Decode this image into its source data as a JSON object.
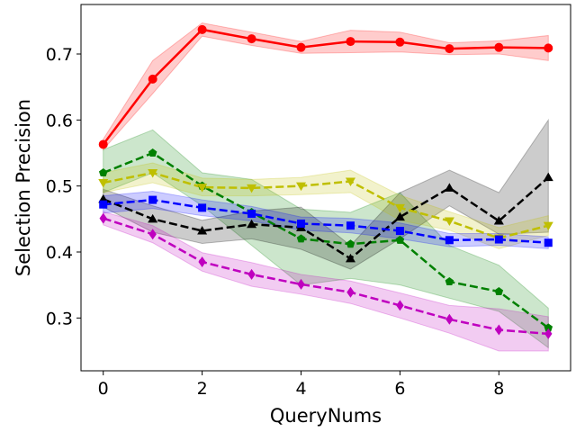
{
  "chart_data": {
    "type": "line",
    "title": "",
    "xlabel": "QueryNums",
    "ylabel": "Selection Precision",
    "xlim": [
      -0.45,
      9.45
    ],
    "ylim": [
      0.22,
      0.775
    ],
    "x": [
      0,
      1,
      2,
      3,
      4,
      5,
      6,
      7,
      8,
      9
    ],
    "xticks": [
      0,
      2,
      4,
      6,
      8
    ],
    "yticks": [
      0.3,
      0.4,
      0.5,
      0.6,
      0.7
    ],
    "xtick_labels": [
      "0",
      "2",
      "4",
      "6",
      "8"
    ],
    "ytick_labels": [
      "0.3",
      "0.4",
      "0.5",
      "0.6",
      "0.7"
    ],
    "grid": false,
    "legend": "none",
    "series": [
      {
        "name": "red",
        "color": "#ff0000",
        "style": "solid",
        "marker": "circle",
        "values": [
          0.563,
          0.662,
          0.737,
          0.723,
          0.71,
          0.719,
          0.718,
          0.708,
          0.71,
          0.709
        ],
        "lower": [
          0.555,
          0.64,
          0.727,
          0.713,
          0.701,
          0.702,
          0.703,
          0.699,
          0.7,
          0.69
        ],
        "upper": [
          0.571,
          0.69,
          0.747,
          0.733,
          0.719,
          0.736,
          0.733,
          0.717,
          0.72,
          0.728
        ]
      },
      {
        "name": "green",
        "color": "#008000",
        "style": "dashed",
        "marker": "pentagon",
        "values": [
          0.52,
          0.55,
          0.5,
          0.46,
          0.42,
          0.412,
          0.418,
          0.355,
          0.34,
          0.285
        ],
        "lower": [
          0.49,
          0.52,
          0.47,
          0.41,
          0.35,
          0.36,
          0.35,
          0.33,
          0.31,
          0.255
        ],
        "upper": [
          0.555,
          0.585,
          0.52,
          0.51,
          0.465,
          0.46,
          0.49,
          0.41,
          0.38,
          0.315
        ]
      },
      {
        "name": "black",
        "color": "#000000",
        "style": "dashed",
        "marker": "triangle-up",
        "values": [
          0.48,
          0.45,
          0.432,
          0.442,
          0.437,
          0.39,
          0.453,
          0.497,
          0.447,
          0.513
        ],
        "lower": [
          0.468,
          0.43,
          0.413,
          0.42,
          0.404,
          0.374,
          0.42,
          0.47,
          0.427,
          0.43
        ],
        "upper": [
          0.495,
          0.47,
          0.448,
          0.462,
          0.468,
          0.41,
          0.49,
          0.524,
          0.49,
          0.6
        ]
      },
      {
        "name": "yellow",
        "color": "#bfbf00",
        "style": "dashed",
        "marker": "triangle-down",
        "values": [
          0.505,
          0.52,
          0.498,
          0.497,
          0.5,
          0.507,
          0.467,
          0.447,
          0.421,
          0.44
        ],
        "lower": [
          0.49,
          0.505,
          0.485,
          0.485,
          0.487,
          0.49,
          0.448,
          0.433,
          0.405,
          0.425
        ],
        "upper": [
          0.52,
          0.535,
          0.512,
          0.51,
          0.513,
          0.524,
          0.486,
          0.461,
          0.437,
          0.455
        ]
      },
      {
        "name": "blue",
        "color": "#0000ff",
        "style": "dashed",
        "marker": "square",
        "values": [
          0.472,
          0.479,
          0.467,
          0.458,
          0.443,
          0.44,
          0.432,
          0.418,
          0.419,
          0.414
        ],
        "lower": [
          0.459,
          0.466,
          0.455,
          0.447,
          0.433,
          0.429,
          0.42,
          0.408,
          0.41,
          0.405
        ],
        "upper": [
          0.485,
          0.492,
          0.479,
          0.469,
          0.453,
          0.451,
          0.444,
          0.428,
          0.428,
          0.423
        ]
      },
      {
        "name": "magenta",
        "color": "#bf00bf",
        "style": "dashed",
        "marker": "diamond",
        "values": [
          0.451,
          0.427,
          0.385,
          0.366,
          0.351,
          0.339,
          0.319,
          0.298,
          0.282,
          0.276
        ],
        "lower": [
          0.441,
          0.414,
          0.371,
          0.348,
          0.336,
          0.322,
          0.3,
          0.277,
          0.25,
          0.25
        ],
        "upper": [
          0.461,
          0.44,
          0.399,
          0.384,
          0.366,
          0.356,
          0.338,
          0.319,
          0.314,
          0.302
        ]
      }
    ]
  }
}
